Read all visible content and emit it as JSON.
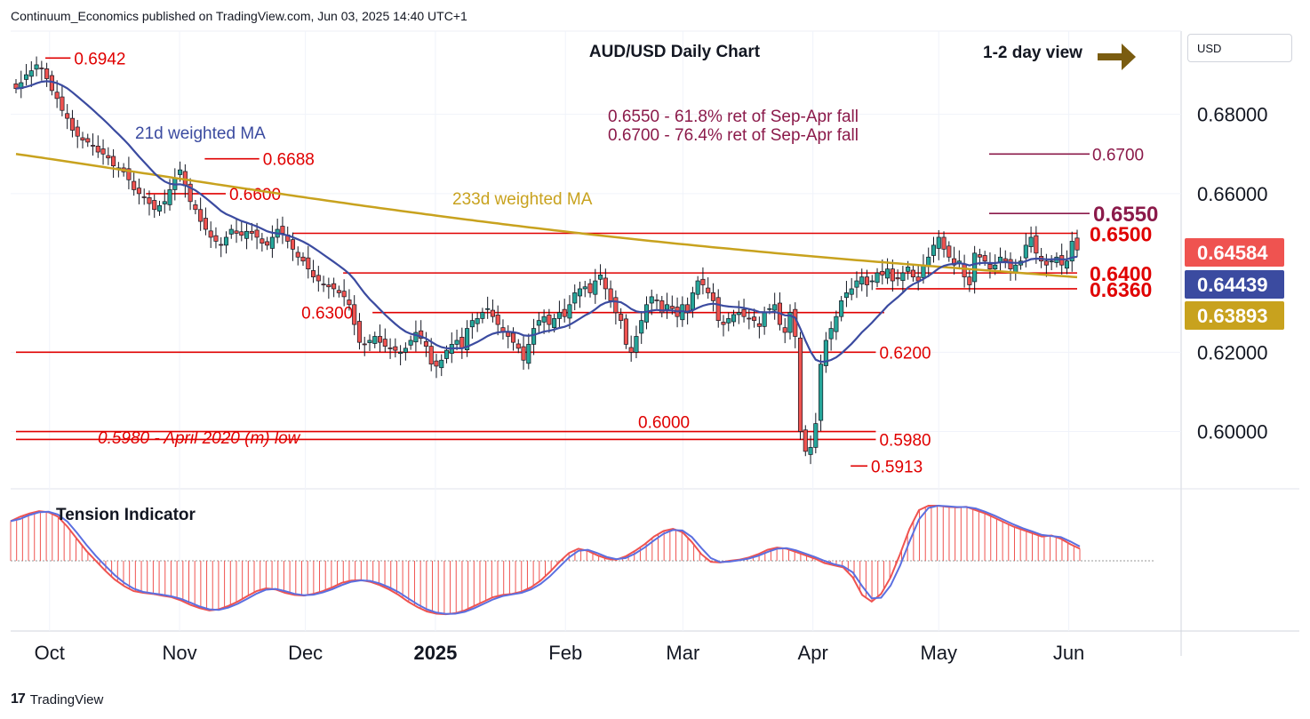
{
  "header": {
    "publisher": "Continuum_Economics published on TradingView.com, Jun 03, 2025 14:40 UTC+1"
  },
  "footer": {
    "brand": "TradingView",
    "brand_mark": "17"
  },
  "currency": "USD",
  "colors": {
    "bull": "#26a69a",
    "bear": "#ef5350",
    "level": "#e00000",
    "ma21": "#3b4ba0",
    "ma233": "#c8a21e",
    "target": "#8b1a4a",
    "arrow": "#7a5c10",
    "tension_fill": "#ef5350",
    "tension_line": "#5b6fe0"
  },
  "chart_data": {
    "type": "candlestick",
    "title": "AUD/USD Daily Chart",
    "view_note": "1-2 day view",
    "y_range": [
      0.586,
      0.701
    ],
    "y_ticks": [
      "0.68000",
      "0.66000",
      "0.62000",
      "0.60000"
    ],
    "y_tick_values": [
      0.68,
      0.66,
      0.62,
      0.6
    ],
    "x_labels": [
      {
        "label": "Oct",
        "date": "2024-10-01"
      },
      {
        "label": "Nov",
        "date": "2024-11-01"
      },
      {
        "label": "Dec",
        "date": "2024-12-01"
      },
      {
        "label": "2025",
        "date": "2025-01-01",
        "bold": true
      },
      {
        "label": "Feb",
        "date": "2025-02-01"
      },
      {
        "label": "Mar",
        "date": "2025-03-01"
      },
      {
        "label": "Apr",
        "date": "2025-04-01"
      },
      {
        "label": "May",
        "date": "2025-05-01"
      },
      {
        "label": "Jun",
        "date": "2025-06-01"
      }
    ],
    "start_date": "2024-09-23",
    "end_date": "2025-06-03",
    "closes": [
      0.6865,
      0.688,
      0.69,
      0.691,
      0.6925,
      0.6915,
      0.689,
      0.686,
      0.684,
      0.681,
      0.679,
      0.676,
      0.6745,
      0.6735,
      0.673,
      0.672,
      0.6705,
      0.67,
      0.669,
      0.667,
      0.6665,
      0.6655,
      0.6635,
      0.661,
      0.66,
      0.659,
      0.6575,
      0.656,
      0.657,
      0.658,
      0.661,
      0.664,
      0.666,
      0.662,
      0.658,
      0.656,
      0.653,
      0.651,
      0.649,
      0.648,
      0.647,
      0.649,
      0.651,
      0.65,
      0.6495,
      0.6505,
      0.65,
      0.649,
      0.6475,
      0.647,
      0.649,
      0.651,
      0.65,
      0.648,
      0.646,
      0.644,
      0.643,
      0.641,
      0.639,
      0.638,
      0.637,
      0.6365,
      0.636,
      0.635,
      0.634,
      0.632,
      0.627,
      0.6225,
      0.622,
      0.623,
      0.624,
      0.6225,
      0.6215,
      0.621,
      0.6205,
      0.62,
      0.621,
      0.623,
      0.625,
      0.6235,
      0.6215,
      0.617,
      0.6165,
      0.618,
      0.6205,
      0.622,
      0.623,
      0.621,
      0.626,
      0.628,
      0.6285,
      0.63,
      0.631,
      0.629,
      0.627,
      0.625,
      0.624,
      0.6225,
      0.621,
      0.618,
      0.622,
      0.626,
      0.628,
      0.629,
      0.627,
      0.6285,
      0.63,
      0.629,
      0.632,
      0.635,
      0.636,
      0.6365,
      0.635,
      0.638,
      0.6395,
      0.636,
      0.633,
      0.63,
      0.628,
      0.622,
      0.62,
      0.624,
      0.628,
      0.632,
      0.634,
      0.633,
      0.63,
      0.632,
      0.631,
      0.629,
      0.632,
      0.63,
      0.635,
      0.638,
      0.637,
      0.635,
      0.633,
      0.628,
      0.627,
      0.6285,
      0.6295,
      0.63,
      0.629,
      0.6285,
      0.628,
      0.6265,
      0.63,
      0.631,
      0.632,
      0.627,
      0.625,
      0.63,
      0.624,
      0.6,
      0.595,
      0.596,
      0.602,
      0.617,
      0.623,
      0.626,
      0.629,
      0.633,
      0.635,
      0.636,
      0.638,
      0.639,
      0.637,
      0.638,
      0.64,
      0.6395,
      0.641,
      0.638,
      0.6385,
      0.64,
      0.6415,
      0.639,
      0.638,
      0.642,
      0.644,
      0.647,
      0.649,
      0.646,
      0.644,
      0.642,
      0.643,
      0.639,
      0.637,
      0.645,
      0.644,
      0.643,
      0.641,
      0.642,
      0.644,
      0.643,
      0.641,
      0.642,
      0.643,
      0.647,
      0.649,
      0.645,
      0.643,
      0.642,
      0.643,
      0.644,
      0.642,
      0.643,
      0.648,
      0.6458
    ],
    "ma21_end": 0.64439,
    "ma233_end": 0.63893,
    "price_tags": [
      {
        "label": "0.64584",
        "value": 0.64584,
        "color": "#ef5350"
      },
      {
        "label": "0.64439",
        "value": 0.64439,
        "color": "#3b4ba0"
      },
      {
        "label": "0.63893",
        "value": 0.63893,
        "color": "#c8a21e"
      }
    ],
    "series_labels": {
      "ma21": "21d weighted MA",
      "ma233": "233d weighted MA"
    },
    "levels": [
      {
        "label": "0.6500",
        "value": 0.65,
        "start": "2024-11-28",
        "label_pos": "right",
        "big": true
      },
      {
        "label": "0.6400",
        "value": 0.64,
        "start": "2024-12-10",
        "label_pos": "right",
        "big": true
      },
      {
        "label": "0.6360",
        "value": 0.636,
        "start": "2025-04-16",
        "label_pos": "right",
        "big": true
      },
      {
        "label": "0.6300",
        "value": 0.63,
        "start": "2024-12-17",
        "end": "2025-04-18",
        "label_pos": "left"
      },
      {
        "label": "0.6200",
        "value": 0.62,
        "start": "2024-09-23",
        "end": "2025-04-16",
        "label_pos": "end"
      },
      {
        "label": "0.6000",
        "value": 0.6,
        "start": "2024-09-23",
        "end": "2025-04-16",
        "label_pos": "above"
      },
      {
        "label": "0.5980",
        "value": 0.598,
        "start": "2024-09-23",
        "end": "2025-04-16",
        "label_pos": "end"
      },
      {
        "label": "0.6600",
        "value": 0.66,
        "start": "2024-10-24",
        "end": "2024-11-12",
        "label_pos": "end"
      },
      {
        "label": "0.6688",
        "value": 0.6688,
        "start": "2024-11-07",
        "end": "2024-11-20",
        "label_pos": "end"
      },
      {
        "label": "0.6942",
        "value": 0.6942,
        "start": "2024-09-30",
        "end": "2024-10-06",
        "label_pos": "end"
      },
      {
        "label": "0.5913",
        "value": 0.5913,
        "start": "2025-04-10",
        "end": "2025-04-14",
        "label_pos": "end"
      }
    ],
    "targets": [
      {
        "label": "0.6700",
        "value": 0.67
      },
      {
        "label": "0.6550",
        "value": 0.655
      }
    ],
    "annotations": [
      "0.6550 - 61.8% ret of Sep-Apr fall",
      "0.6700 - 76.4% ret of Sep-Apr fall",
      "0.5980 - April 2020 (m) low"
    ],
    "lower_panel": {
      "title": "Tension Indicator",
      "values": [
        0.72,
        0.8,
        0.86,
        0.9,
        0.88,
        0.8,
        0.62,
        0.4,
        0.18,
        0.0,
        -0.18,
        -0.34,
        -0.46,
        -0.55,
        -0.58,
        -0.6,
        -0.63,
        -0.66,
        -0.72,
        -0.8,
        -0.86,
        -0.9,
        -0.88,
        -0.82,
        -0.74,
        -0.64,
        -0.55,
        -0.5,
        -0.52,
        -0.58,
        -0.62,
        -0.63,
        -0.6,
        -0.55,
        -0.48,
        -0.4,
        -0.36,
        -0.35,
        -0.38,
        -0.44,
        -0.52,
        -0.62,
        -0.74,
        -0.84,
        -0.92,
        -0.96,
        -0.97,
        -0.95,
        -0.9,
        -0.82,
        -0.74,
        -0.66,
        -0.62,
        -0.6,
        -0.56,
        -0.48,
        -0.36,
        -0.2,
        -0.02,
        0.14,
        0.22,
        0.18,
        0.1,
        0.04,
        0.02,
        0.08,
        0.18,
        0.3,
        0.44,
        0.54,
        0.58,
        0.52,
        0.34,
        0.12,
        -0.02,
        -0.03,
        0.0,
        0.02,
        0.06,
        0.12,
        0.2,
        0.24,
        0.22,
        0.16,
        0.1,
        0.04,
        -0.04,
        -0.08,
        -0.12,
        -0.3,
        -0.62,
        -0.74,
        -0.6,
        -0.3,
        0.12,
        0.58,
        0.92,
        1.0,
        1.0,
        0.98,
        0.97,
        0.98,
        0.92,
        0.86,
        0.78,
        0.7,
        0.62,
        0.56,
        0.5,
        0.44,
        0.46,
        0.4,
        0.3,
        0.22
      ]
    }
  }
}
